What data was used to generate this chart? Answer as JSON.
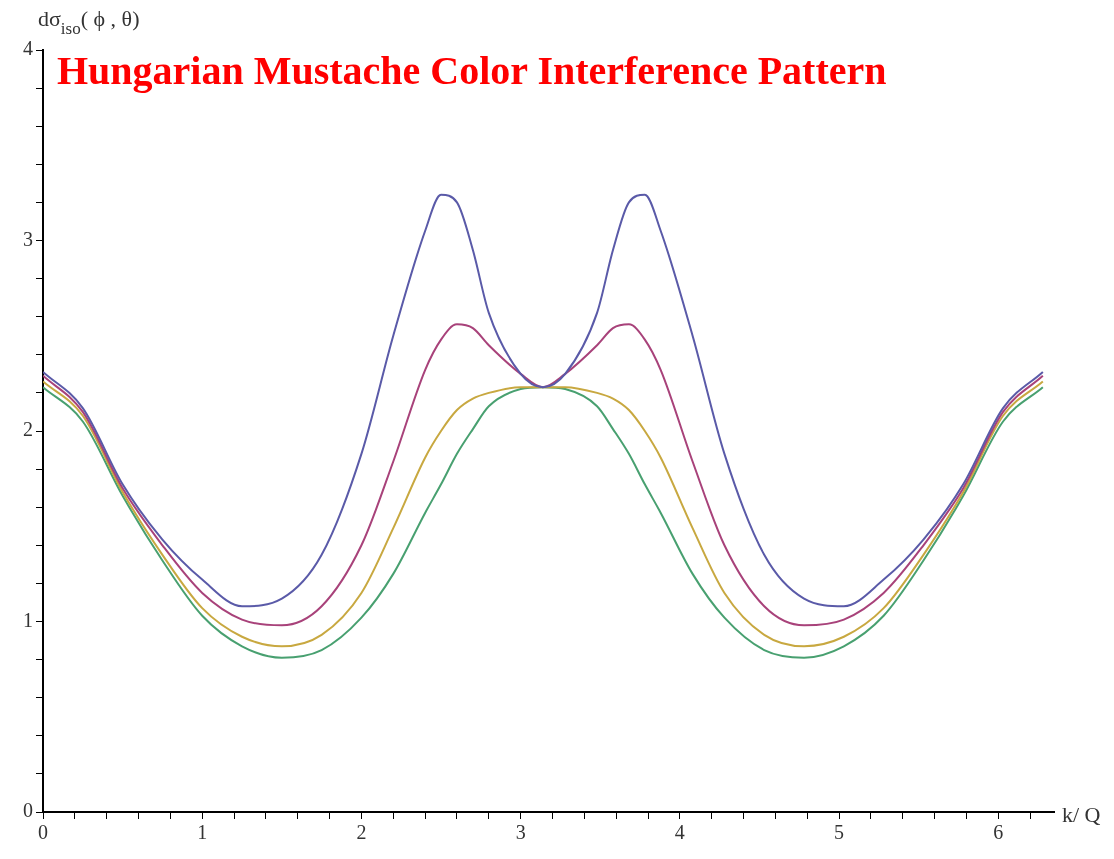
{
  "chart_data": {
    "type": "line",
    "title": "Hungarian Mustache Color Interference Pattern",
    "xlabel": "k/ Q",
    "ylabel": "dσ$_{iso}$( ϕ , θ)",
    "x": [
      0,
      0.25,
      0.5,
      0.75,
      1.0,
      1.25,
      1.5,
      1.75,
      2.0,
      2.2,
      2.4,
      2.5,
      2.6,
      2.7,
      2.8,
      3.0,
      3.14,
      3.28,
      3.48,
      3.58,
      3.68,
      3.78,
      3.88,
      4.08,
      4.28,
      4.53,
      4.78,
      5.03,
      5.28,
      5.53,
      5.78,
      6.03,
      6.28
    ],
    "series": [
      {
        "color": "#5a5aa8",
        "values": [
          2.31,
          2.12,
          1.72,
          1.43,
          1.22,
          1.08,
          1.12,
          1.35,
          1.88,
          2.5,
          3.05,
          3.24,
          3.2,
          2.95,
          2.62,
          2.3,
          2.23,
          2.3,
          2.62,
          2.95,
          3.2,
          3.24,
          3.05,
          2.5,
          1.88,
          1.35,
          1.12,
          1.08,
          1.22,
          1.43,
          1.72,
          2.12,
          2.31
        ]
      },
      {
        "color": "#a8427a",
        "values": [
          2.29,
          2.1,
          1.7,
          1.4,
          1.15,
          1.01,
          0.98,
          1.08,
          1.4,
          1.84,
          2.32,
          2.48,
          2.56,
          2.54,
          2.45,
          2.3,
          2.23,
          2.3,
          2.45,
          2.54,
          2.56,
          2.48,
          2.32,
          1.84,
          1.4,
          1.08,
          0.98,
          1.01,
          1.15,
          1.4,
          1.7,
          2.1,
          2.29
        ]
      },
      {
        "color": "#c8a840",
        "values": [
          2.26,
          2.08,
          1.68,
          1.35,
          1.07,
          0.92,
          0.87,
          0.93,
          1.15,
          1.49,
          1.86,
          2.0,
          2.11,
          2.17,
          2.2,
          2.23,
          2.23,
          2.23,
          2.2,
          2.17,
          2.11,
          2.0,
          1.86,
          1.49,
          1.15,
          0.93,
          0.87,
          0.92,
          1.07,
          1.35,
          1.68,
          2.08,
          2.26
        ]
      },
      {
        "color": "#48a070",
        "values": [
          2.23,
          2.05,
          1.66,
          1.32,
          1.03,
          0.87,
          0.81,
          0.85,
          1.02,
          1.25,
          1.57,
          1.72,
          1.88,
          2.01,
          2.13,
          2.22,
          2.23,
          2.22,
          2.13,
          2.01,
          1.88,
          1.72,
          1.57,
          1.25,
          1.02,
          0.85,
          0.81,
          0.87,
          1.03,
          1.32,
          1.66,
          2.05,
          2.23
        ]
      }
    ],
    "xlim": [
      0,
      6.35
    ],
    "ylim": [
      0,
      4
    ],
    "xticks": [
      0,
      {
        "value": 0.2,
        "label": null
      },
      {
        "value": 0.4,
        "label": null
      },
      {
        "value": 0.6,
        "label": null
      },
      {
        "value": 0.8,
        "label": null
      },
      1,
      {
        "value": 1.2,
        "label": null
      },
      {
        "value": 1.4,
        "label": null
      },
      {
        "value": 1.6,
        "label": null
      },
      {
        "value": 1.8,
        "label": null
      },
      2,
      {
        "value": 2.2,
        "label": null
      },
      {
        "value": 2.4,
        "label": null
      },
      {
        "value": 2.6,
        "label": null
      },
      {
        "value": 2.8,
        "label": null
      },
      3,
      {
        "value": 3.2,
        "label": null
      },
      {
        "value": 3.4,
        "label": null
      },
      {
        "value": 3.6,
        "label": null
      },
      {
        "value": 3.8,
        "label": null
      },
      4,
      {
        "value": 4.2,
        "label": null
      },
      {
        "value": 4.4,
        "label": null
      },
      {
        "value": 4.6,
        "label": null
      },
      {
        "value": 4.8,
        "label": null
      },
      5,
      {
        "value": 5.2,
        "label": null
      },
      {
        "value": 5.4,
        "label": null
      },
      {
        "value": 5.6,
        "label": null
      },
      {
        "value": 5.8,
        "label": null
      },
      6,
      {
        "value": 6.2,
        "label": null
      }
    ],
    "yticks": [
      0,
      {
        "value": 0.2,
        "label": null
      },
      {
        "value": 0.4,
        "label": null
      },
      {
        "value": 0.6,
        "label": null
      },
      {
        "value": 0.8,
        "label": null
      },
      1,
      {
        "value": 1.2,
        "label": null
      },
      {
        "value": 1.4,
        "label": null
      },
      {
        "value": 1.6,
        "label": null
      },
      {
        "value": 1.8,
        "label": null
      },
      2,
      {
        "value": 2.2,
        "label": null
      },
      {
        "value": 2.4,
        "label": null
      },
      {
        "value": 2.6,
        "label": null
      },
      {
        "value": 2.8,
        "label": null
      },
      3,
      {
        "value": 3.2,
        "label": null
      },
      {
        "value": 3.4,
        "label": null
      },
      {
        "value": 3.6,
        "label": null
      },
      {
        "value": 3.8,
        "label": null
      },
      4
    ],
    "grid": false,
    "legend": false,
    "marker": "none",
    "line_style": "solid"
  }
}
